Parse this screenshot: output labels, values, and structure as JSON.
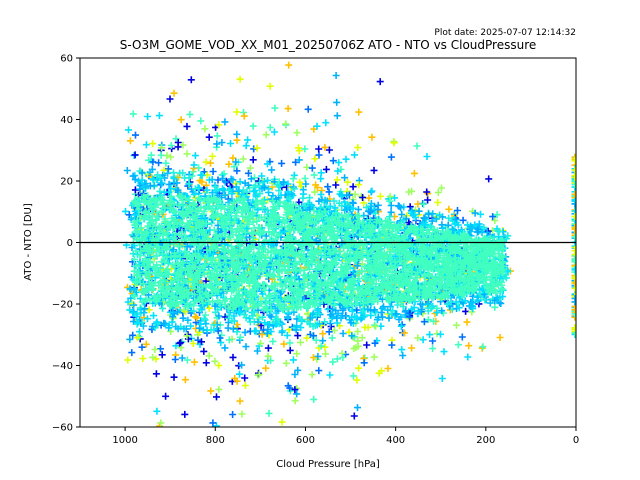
{
  "chart_data": {
    "type": "scatter",
    "title": "S-O3M_GOME_VOD_XX_M01_20250706Z ATO - NTO vs CloudPressure",
    "subtitle": "Plot date: 2025-07-07 12:14:32",
    "xlabel": "Cloud Pressure [hPa]",
    "ylabel": "ATO - NTO [DU]",
    "xlim": [
      1100,
      0
    ],
    "ylim": [
      -60,
      60
    ],
    "x_ticks": [
      1000,
      800,
      600,
      400,
      200,
      0
    ],
    "y_ticks": [
      -60,
      -40,
      -20,
      0,
      20,
      40,
      60
    ],
    "x_tick_labels": [
      "1000",
      "800",
      "600",
      "400",
      "200",
      "0"
    ],
    "y_tick_labels": [
      "−60",
      "−40",
      "−20",
      "0",
      "20",
      "40",
      "60"
    ],
    "reference_line_y": 0,
    "marker": "plus",
    "grid": false,
    "colors": [
      "#0000e0",
      "#0070ff",
      "#00b0ff",
      "#00e0ff",
      "#40ffc0",
      "#a0ff60",
      "#e0ff00",
      "#ffc000"
    ],
    "point_cloud": {
      "main": {
        "x_range": [
          150,
          990
        ],
        "y_center_at_1000": -2,
        "y_center_at_150": -8,
        "y_spread": 30
      },
      "outliers": {
        "y_min": -60,
        "y_max": 58
      },
      "column_at_zero": {
        "x": 0,
        "y_range": [
          -30,
          28
        ]
      }
    }
  }
}
